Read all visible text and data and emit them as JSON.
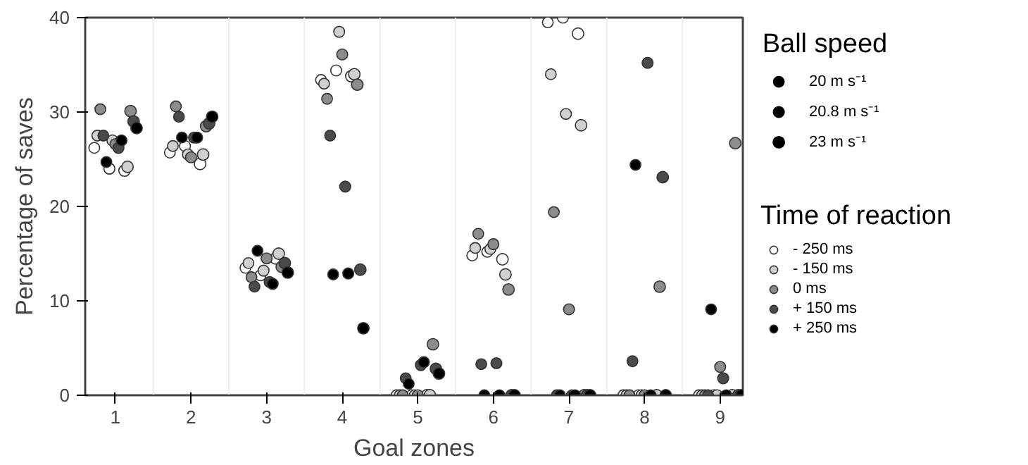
{
  "chart_data": {
    "type": "bubble",
    "xlabel": "Goal zones",
    "ylabel": "Percentage of saves",
    "legend_title": "Time of reaction",
    "legend": "right",
    "annotations": [
      "Ball speed"
    ],
    "size_legend": [
      {
        "value": 20,
        "label": "20 m s⁻¹"
      },
      {
        "value": 20.8,
        "label": "20.8 m s⁻¹"
      },
      {
        "value": 23,
        "label": "23 m s⁻¹"
      }
    ],
    "xlim": [
      0.6,
      9.3
    ],
    "xticks": [
      1,
      2,
      3,
      4,
      5,
      6,
      7,
      8,
      9
    ],
    "ylim": [
      0,
      40
    ],
    "yticks": [
      0,
      10,
      20,
      30,
      40
    ],
    "grid": false,
    "marker": "circle",
    "ref_lines": [
      {
        "axis": "x",
        "value": 1.5,
        "color": "#eeeeee"
      },
      {
        "axis": "x",
        "value": 2.5,
        "color": "#eeeeee"
      },
      {
        "axis": "x",
        "value": 3.5,
        "color": "#eeeeee"
      },
      {
        "axis": "x",
        "value": 4.5,
        "color": "#eeeeee"
      },
      {
        "axis": "x",
        "value": 5.5,
        "color": "#eeeeee"
      },
      {
        "axis": "x",
        "value": 6.5,
        "color": "#eeeeee"
      },
      {
        "axis": "x",
        "value": 7.5,
        "color": "#eeeeee"
      },
      {
        "axis": "x",
        "value": 8.5,
        "color": "#eeeeee"
      }
    ],
    "series": [
      {
        "name": "- 250 ms",
        "color": "#ffffff",
        "x": [
          0.72,
          0.92,
          1.12,
          1.72,
          1.92,
          2.12,
          2.72,
          2.92,
          3.12,
          3.72,
          3.92,
          4.12,
          4.72,
          4.92,
          5.12,
          5.72,
          5.92,
          6.12,
          6.72,
          6.92,
          7.12,
          7.72,
          7.92,
          null,
          8.72,
          8.92,
          null
        ],
        "values": [
          26.2,
          24.0,
          23.8,
          25.7,
          26.4,
          24.5,
          13.5,
          12.7,
          14.5,
          33.4,
          34.4,
          33.8,
          0,
          0,
          0,
          14.8,
          15.2,
          14.4,
          39.5,
          40,
          38.3,
          0,
          0,
          null,
          0,
          0,
          null
        ],
        "sizes": [
          20,
          20.8,
          23,
          20,
          20.8,
          23,
          20,
          20.8,
          23,
          20,
          20.8,
          23,
          20,
          20.8,
          23,
          20,
          20.8,
          23,
          20,
          20.8,
          23,
          20,
          20.8,
          null,
          20,
          20.8,
          null
        ]
      },
      {
        "name": "- 150 ms",
        "color": "#d0d0d0",
        "x": [
          0.76,
          0.96,
          1.16,
          1.76,
          1.96,
          2.16,
          2.76,
          2.96,
          3.16,
          3.76,
          3.96,
          4.16,
          4.76,
          4.96,
          5.16,
          5.76,
          5.96,
          6.16,
          6.76,
          6.96,
          7.16,
          7.76,
          7.96,
          8.16,
          8.76,
          8.96,
          9.16
        ],
        "values": [
          27.5,
          27.0,
          24.2,
          26.4,
          25.5,
          25.5,
          14.0,
          13.2,
          15.0,
          33.0,
          38.5,
          34.0,
          0,
          0,
          0,
          15.6,
          15.5,
          12.8,
          34.0,
          29.8,
          28.6,
          0,
          0,
          0,
          0,
          0,
          0
        ],
        "sizes": [
          20,
          20.8,
          23,
          20,
          20.8,
          23,
          20,
          20.8,
          23,
          20,
          20.8,
          23,
          20,
          20.8,
          23,
          20,
          20.8,
          23,
          20,
          20.8,
          23,
          20,
          20.8,
          23,
          20,
          20.8,
          23
        ]
      },
      {
        "name": "0 ms",
        "color": "#8c8c8c",
        "x": [
          0.8,
          1,
          1.2,
          1.8,
          2,
          2.2,
          2.8,
          3,
          3.2,
          3.8,
          4,
          4.2,
          4.8,
          5,
          5.2,
          5.8,
          6,
          6.2,
          6.8,
          7,
          7.2,
          7.8,
          8,
          8.2,
          8.8,
          9,
          9.2
        ],
        "values": [
          30.3,
          26.6,
          30.1,
          30.6,
          25.2,
          28.5,
          12.5,
          14.5,
          13.6,
          31.4,
          36.1,
          32.9,
          0,
          0,
          5.4,
          17.1,
          16.0,
          11.2,
          19.4,
          9.1,
          0,
          0,
          0,
          11.5,
          0,
          3.0,
          26.7
        ],
        "sizes": [
          20,
          20.8,
          23,
          20,
          20.8,
          23,
          20,
          20.8,
          23,
          20,
          20.8,
          23,
          20,
          20.8,
          23,
          20,
          20.8,
          23,
          20,
          20.8,
          23,
          20,
          20.8,
          23,
          20,
          20.8,
          23
        ]
      },
      {
        "name": "+ 150 ms",
        "color": "#4a4a4a",
        "x": [
          0.84,
          1.04,
          1.24,
          1.84,
          2.04,
          2.24,
          2.84,
          3.04,
          3.24,
          3.84,
          4.04,
          4.24,
          4.84,
          5.04,
          5.24,
          5.84,
          6.04,
          6.24,
          6.84,
          7.04,
          7.24,
          7.84,
          8.04,
          8.24,
          8.84,
          9.04,
          9.24
        ],
        "values": [
          27.5,
          26.2,
          29.0,
          29.5,
          27.3,
          28.8,
          11.5,
          12.0,
          14.0,
          27.5,
          22.1,
          13.3,
          1.8,
          3.2,
          2.8,
          3.3,
          3.4,
          0,
          0,
          0,
          0,
          3.6,
          35.2,
          23.1,
          0,
          1.8,
          0
        ],
        "sizes": [
          20,
          20.8,
          23,
          20,
          20.8,
          23,
          20,
          20.8,
          23,
          20,
          20.8,
          23,
          20,
          20.8,
          23,
          20,
          20.8,
          23,
          20,
          20.8,
          23,
          20,
          20.8,
          23,
          20,
          20.8,
          23
        ]
      },
      {
        "name": "+ 250 ms",
        "color": "#000000",
        "x": [
          0.88,
          1.08,
          1.28,
          1.88,
          2.08,
          2.28,
          2.88,
          3.08,
          3.28,
          3.88,
          4.08,
          4.28,
          4.88,
          5.08,
          5.28,
          5.88,
          6.08,
          6.28,
          6.88,
          7.08,
          7.28,
          7.88,
          8.08,
          8.28,
          8.88,
          9.08,
          9.28
        ],
        "values": [
          24.7,
          27.0,
          28.3,
          27.3,
          27.3,
          29.5,
          15.3,
          11.8,
          13.0,
          12.8,
          12.9,
          7.1,
          1.2,
          3.5,
          2.3,
          0,
          0,
          0,
          0,
          0,
          0,
          24.4,
          0,
          0,
          9.1,
          0,
          0
        ],
        "sizes": [
          20,
          20.8,
          23,
          20,
          20.8,
          23,
          20,
          20.8,
          23,
          20,
          20.8,
          23,
          20,
          20.8,
          23,
          20,
          20.8,
          23,
          20,
          20.8,
          23,
          20,
          20.8,
          23,
          20,
          20.8,
          23
        ]
      }
    ]
  }
}
